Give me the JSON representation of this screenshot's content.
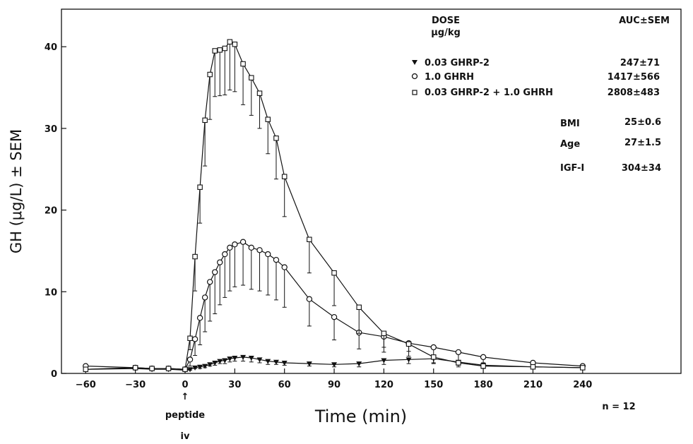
{
  "chart_data": {
    "type": "line",
    "xlabel": "Time (min)",
    "ylabel": "GH (μg/L) ± SEM",
    "xlim": [
      -60,
      240
    ],
    "ylim": [
      0,
      45
    ],
    "x_ticks": [
      -60,
      -30,
      0,
      30,
      60,
      90,
      120,
      150,
      180,
      210,
      240
    ],
    "y_ticks": [
      0,
      10,
      20,
      30,
      40
    ],
    "grid": false,
    "legend": {
      "header_dose": "DOSE",
      "header_units": "µg/kg",
      "header_auc": "AUC±SEM",
      "placement": "top-right"
    },
    "series": [
      {
        "name": "0.03 GHRP-2",
        "auc": "247±71",
        "marker": "triangle-down-filled",
        "x": [
          -60,
          -30,
          -20,
          -10,
          0,
          3,
          6,
          9,
          12,
          15,
          18,
          21,
          24,
          27,
          30,
          35,
          40,
          45,
          50,
          55,
          60,
          75,
          90,
          105,
          120,
          135,
          150,
          165,
          180,
          210,
          240
        ],
        "y": [
          0.5,
          0.6,
          0.5,
          0.5,
          0.4,
          0.5,
          0.7,
          0.8,
          0.9,
          1.1,
          1.3,
          1.5,
          1.6,
          1.8,
          1.9,
          2.0,
          1.9,
          1.7,
          1.5,
          1.4,
          1.3,
          1.2,
          1.1,
          1.2,
          1.6,
          1.7,
          1.8,
          1.4,
          1.0,
          0.8,
          0.7
        ],
        "sem": [
          0.1,
          0.1,
          0.1,
          0.1,
          0.1,
          0.1,
          0.1,
          0.2,
          0.2,
          0.2,
          0.3,
          0.3,
          0.4,
          0.4,
          0.4,
          0.5,
          0.5,
          0.4,
          0.4,
          0.3,
          0.3,
          0.3,
          0.3,
          0.4,
          0.5,
          0.5,
          0.6,
          0.4,
          0.3,
          0.2,
          0.2
        ]
      },
      {
        "name": "1.0 GHRH",
        "auc": "1417±566",
        "marker": "circle-open",
        "x": [
          -60,
          -30,
          -20,
          -10,
          0,
          3,
          6,
          9,
          12,
          15,
          18,
          21,
          24,
          27,
          30,
          35,
          40,
          45,
          50,
          55,
          60,
          75,
          90,
          105,
          120,
          135,
          150,
          165,
          180,
          210,
          240
        ],
        "y": [
          0.9,
          0.7,
          0.6,
          0.6,
          0.5,
          1.7,
          4.2,
          6.8,
          9.3,
          11.2,
          12.4,
          13.6,
          14.6,
          15.4,
          15.8,
          16.1,
          15.4,
          15.1,
          14.6,
          13.9,
          13.0,
          9.1,
          6.9,
          5.0,
          4.5,
          3.7,
          3.2,
          2.6,
          2.0,
          1.3,
          0.9
        ],
        "sem": [
          0.2,
          0.2,
          0.2,
          0.2,
          0.2,
          0.8,
          2.0,
          3.3,
          4.2,
          4.8,
          5.1,
          5.2,
          5.3,
          5.3,
          5.2,
          5.3,
          5.1,
          5.0,
          5.0,
          4.9,
          4.9,
          3.3,
          2.8,
          2.0,
          1.9,
          1.6,
          1.2,
          1.0,
          0.7,
          0.4,
          0.3
        ]
      },
      {
        "name": "0.03 GHRP-2 + 1.0 GHRH",
        "auc": "2808±483",
        "marker": "square-open",
        "x": [
          -60,
          -30,
          -20,
          -10,
          0,
          3,
          6,
          9,
          12,
          15,
          18,
          21,
          24,
          27,
          30,
          35,
          40,
          45,
          50,
          55,
          60,
          75,
          90,
          105,
          120,
          135,
          150,
          165,
          180,
          210,
          240
        ],
        "y": [
          0.5,
          0.7,
          0.6,
          0.6,
          0.5,
          4.3,
          14.3,
          22.8,
          31.0,
          36.6,
          39.5,
          39.6,
          39.8,
          40.6,
          40.3,
          37.9,
          36.2,
          34.3,
          31.1,
          28.8,
          24.1,
          16.4,
          12.3,
          8.1,
          4.9,
          3.6,
          2.0,
          1.3,
          0.9,
          0.8,
          0.7
        ],
        "sem": [
          0.1,
          0.2,
          0.2,
          0.2,
          0.1,
          1.4,
          4.2,
          4.4,
          5.6,
          5.5,
          5.6,
          5.6,
          5.7,
          5.9,
          5.8,
          5.0,
          4.6,
          4.3,
          4.2,
          5.0,
          4.9,
          4.1,
          4.0,
          3.2,
          1.7,
          0.9,
          0.7,
          0.5,
          0.3,
          0.2,
          0.2
        ]
      }
    ],
    "info": [
      {
        "label": "BMI",
        "value": "25±0.6"
      },
      {
        "label": "Age",
        "value": "27±1.5"
      },
      {
        "label": "IGF-I",
        "value": "304±34"
      }
    ],
    "annotations": {
      "arrow_symbol": "↑",
      "peptide": "peptide",
      "iv": "iv",
      "n_label": "n = 12"
    }
  }
}
